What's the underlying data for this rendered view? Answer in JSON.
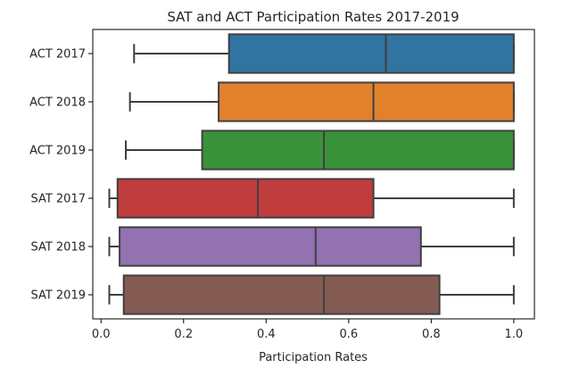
{
  "chart_data": {
    "type": "boxplot",
    "orientation": "horizontal",
    "title": "SAT and ACT Participation Rates 2017-2019",
    "xlabel": "Participation Rates",
    "ylabel": "",
    "xlim": [
      -0.02,
      1.05
    ],
    "x_ticks": [
      0.0,
      0.2,
      0.4,
      0.6,
      0.8,
      1.0
    ],
    "x_tick_labels": [
      "0.0",
      "0.2",
      "0.4",
      "0.6",
      "0.8",
      "1.0"
    ],
    "grid": false,
    "legend": "none",
    "categories": [
      "ACT 2017",
      "ACT 2018",
      "ACT 2019",
      "SAT 2017",
      "SAT 2018",
      "SAT 2019"
    ],
    "boxes": [
      {
        "category": "ACT 2017",
        "min": 0.08,
        "q1": 0.31,
        "median": 0.69,
        "q3": 1.0,
        "max": 1.0,
        "color": "#3274a1"
      },
      {
        "category": "ACT 2018",
        "min": 0.07,
        "q1": 0.285,
        "median": 0.66,
        "q3": 1.0,
        "max": 1.0,
        "color": "#e1812c"
      },
      {
        "category": "ACT 2019",
        "min": 0.06,
        "q1": 0.245,
        "median": 0.54,
        "q3": 1.0,
        "max": 1.0,
        "color": "#3a923a"
      },
      {
        "category": "SAT 2017",
        "min": 0.02,
        "q1": 0.04,
        "median": 0.38,
        "q3": 0.66,
        "max": 1.0,
        "color": "#c03d3e"
      },
      {
        "category": "SAT 2018",
        "min": 0.02,
        "q1": 0.045,
        "median": 0.52,
        "q3": 0.775,
        "max": 1.0,
        "color": "#9372b2"
      },
      {
        "category": "SAT 2019",
        "min": 0.02,
        "q1": 0.055,
        "median": 0.54,
        "q3": 0.82,
        "max": 1.0,
        "color": "#845b53"
      }
    ],
    "colors": {
      "line": "#3f3f3f",
      "axis": "#000000",
      "text": "#262626"
    }
  }
}
